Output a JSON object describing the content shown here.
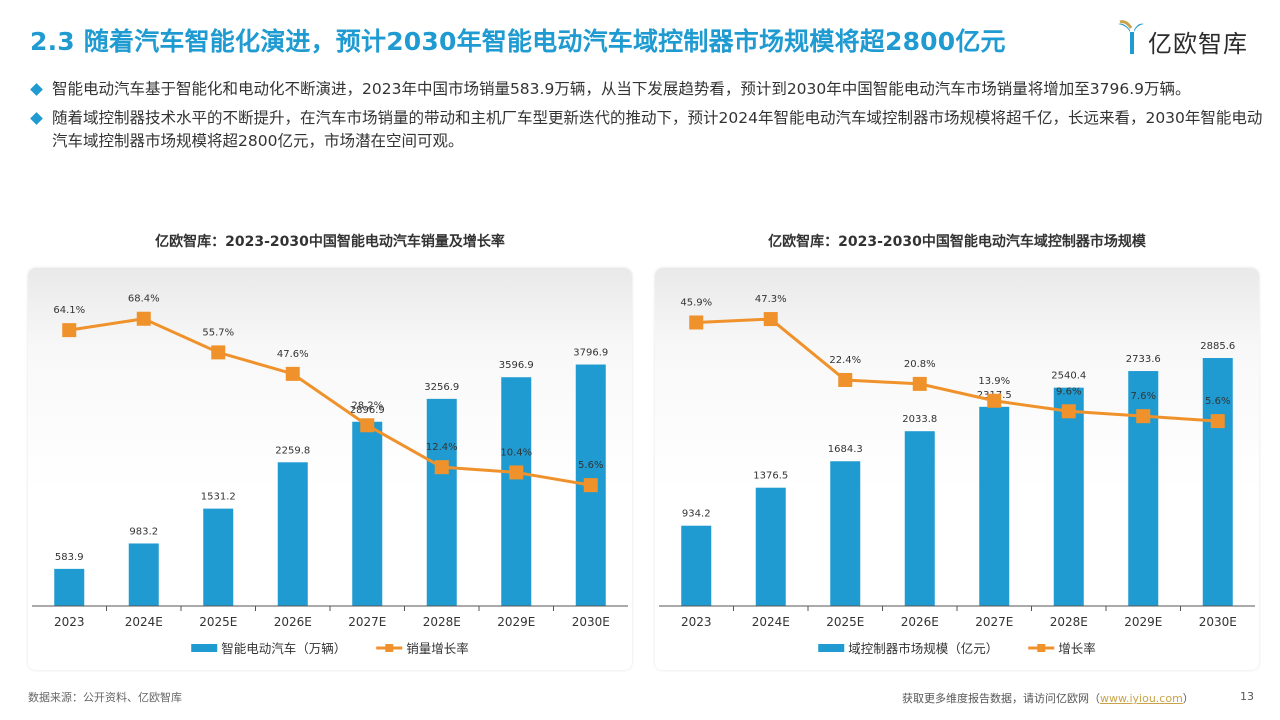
{
  "page": {
    "title": "2.3 随着汽车智能化演进，预计2030年智能电动汽车域控制器市场规模将超2800亿元",
    "logo_text": "亿欧智库",
    "bullets": [
      "智能电动汽车基于智能化和电动化不断演进，2023年中国市场销量583.9万辆，从当下发展趋势看，预计到2030年中国智能电动汽车市场销量将增加至3796.9万辆。",
      "随着域控制器技术水平的不断提升，在汽车市场销量的带动和主机厂车型更新迭代的推动下，预计2024年智能电动汽车域控制器市场规模将超千亿，长远来看，2030年智能电动汽车域控制器市场规模将超2800亿元，市场潜在空间可观。"
    ],
    "source": "数据来源：公开资料、亿欧智库",
    "footer_prefix": "获取更多维度报告数据，请访问亿欧网（",
    "footer_link": "www.iyiou.com",
    "footer_suffix": "）",
    "page_number": "13"
  },
  "colors": {
    "title": "#1f9bd1",
    "bar": "#1f9bd1",
    "line": "#f0922b",
    "axis": "#555555"
  },
  "chart_data": [
    {
      "type": "bar",
      "title": "亿欧智库：2023-2030中国智能电动汽车销量及增长率",
      "categories": [
        "2023",
        "2024E",
        "2025E",
        "2026E",
        "2027E",
        "2028E",
        "2029E",
        "2030E"
      ],
      "series": [
        {
          "name": "智能电动汽车（万辆）",
          "type": "bar",
          "values": [
            583.9,
            983.2,
            1531.2,
            2259.8,
            2896.9,
            3256.9,
            3596.9,
            3796.9
          ],
          "labels": [
            "583.9",
            "983.2",
            "1531.2",
            "2259.8",
            "2896.9",
            "3256.9",
            "3596.9",
            "3796.9"
          ]
        },
        {
          "name": "销量增长率",
          "type": "line",
          "values": [
            64.1,
            68.4,
            55.7,
            47.6,
            28.2,
            12.4,
            10.4,
            5.6
          ],
          "labels": [
            "64.1%",
            "68.4%",
            "55.7%",
            "47.6%",
            "28.2%",
            "12.4%",
            "10.4%",
            "5.6%"
          ]
        }
      ],
      "bar_ylim": [
        0,
        5000
      ],
      "line_ylim": [
        -40,
        80
      ],
      "legend_position": "bottom",
      "grid": false
    },
    {
      "type": "bar",
      "title": "亿欧智库：2023-2030中国智能电动汽车域控制器市场规模",
      "categories": [
        "2023",
        "2024E",
        "2025E",
        "2026E",
        "2027E",
        "2028E",
        "2029E",
        "2030E"
      ],
      "series": [
        {
          "name": "域控制器市场规模（亿元）",
          "type": "bar",
          "values": [
            934.2,
            1376.5,
            1684.3,
            2033.8,
            2317.5,
            2540.4,
            2733.6,
            2885.6
          ],
          "labels": [
            "934.2",
            "1376.5",
            "1684.3",
            "2033.8",
            "2317.5",
            "2540.4",
            "2733.6",
            "2885.6"
          ]
        },
        {
          "name": "增长率",
          "type": "line",
          "values": [
            45.9,
            47.3,
            22.4,
            20.8,
            13.9,
            9.6,
            7.6,
            5.6
          ],
          "labels": [
            "45.9%",
            "47.3%",
            "22.4%",
            "20.8%",
            "13.9%",
            "9.6%",
            "7.6%",
            "5.6%"
          ]
        }
      ],
      "bar_ylim": [
        0,
        3700
      ],
      "line_ylim": [
        -70,
        60
      ],
      "legend_position": "bottom",
      "grid": false
    }
  ]
}
